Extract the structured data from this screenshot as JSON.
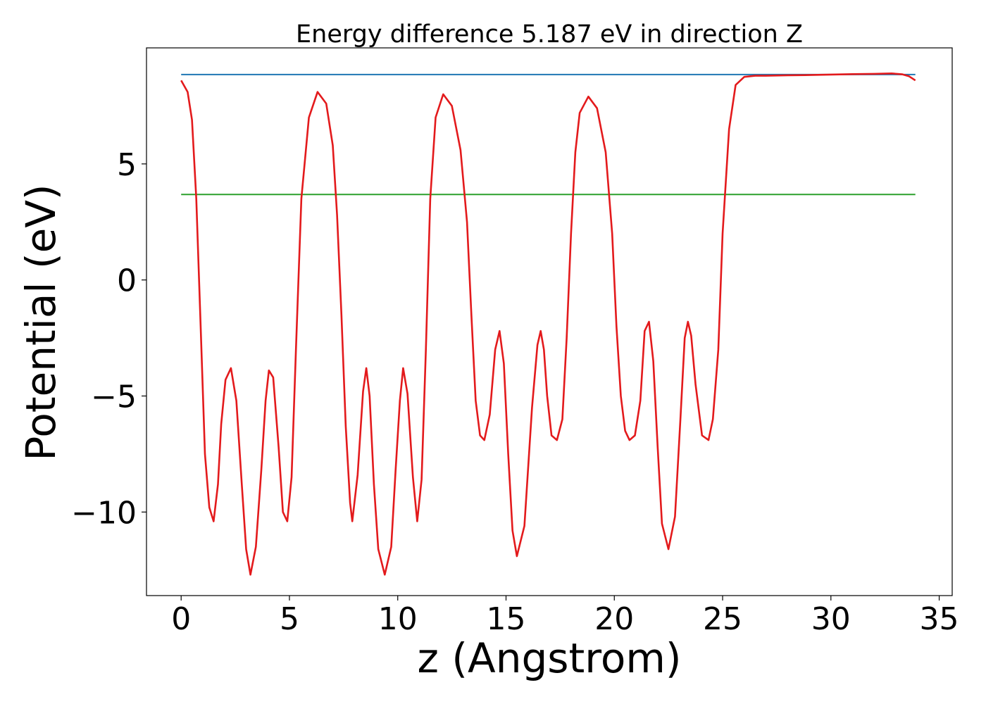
{
  "chart_data": {
    "type": "line",
    "title": "Energy difference 5.187 eV in direction Z",
    "xlabel": "z (Angstrom)",
    "ylabel": "Potential (eV)",
    "xlim": [
      -1.6,
      35.6
    ],
    "ylim": [
      -13.6,
      10.0
    ],
    "x_ticks": [
      0,
      5,
      10,
      15,
      20,
      25,
      30,
      35
    ],
    "x_tick_labels": [
      "0",
      "5",
      "10",
      "15",
      "20",
      "25",
      "30",
      "35"
    ],
    "y_ticks": [
      -10,
      -5,
      0,
      5
    ],
    "y_tick_labels": [
      "−10",
      "−5",
      "0",
      "5"
    ],
    "grid": false,
    "legend": "none",
    "series": [
      {
        "color": "#1f77b4",
        "x": [
          0,
          33.9
        ],
        "y": [
          8.85,
          8.85
        ]
      },
      {
        "color": "#2ca02c",
        "x": [
          0,
          33.9
        ],
        "y": [
          3.68,
          3.68
        ]
      },
      {
        "color": "#e31a1c",
        "x": [
          0,
          0.3,
          0.5,
          0.7,
          0.9,
          1.1,
          1.3,
          1.5,
          1.7,
          1.85,
          2.05,
          2.3,
          2.55,
          2.8,
          3.0,
          3.2,
          3.45,
          3.7,
          3.9,
          4.05,
          4.25,
          4.5,
          4.7,
          4.9,
          5.1,
          5.3,
          5.55,
          5.9,
          6.3,
          6.7,
          7.0,
          7.2,
          7.4,
          7.6,
          7.8,
          7.9,
          8.15,
          8.4,
          8.55,
          8.7,
          8.9,
          9.1,
          9.4,
          9.7,
          9.9,
          10.1,
          10.25,
          10.45,
          10.7,
          10.9,
          11.1,
          11.3,
          11.5,
          11.75,
          12.1,
          12.5,
          12.9,
          13.2,
          13.4,
          13.6,
          13.8,
          14.0,
          14.25,
          14.5,
          14.7,
          14.9,
          15.1,
          15.3,
          15.5,
          15.85,
          16.2,
          16.45,
          16.6,
          16.75,
          16.9,
          17.1,
          17.35,
          17.6,
          17.8,
          18.0,
          18.2,
          18.4,
          18.8,
          19.2,
          19.6,
          19.9,
          20.1,
          20.3,
          20.5,
          20.7,
          20.95,
          21.2,
          21.4,
          21.6,
          21.8,
          22.0,
          22.2,
          22.5,
          22.8,
          23.05,
          23.25,
          23.4,
          23.55,
          23.75,
          24.05,
          24.35,
          24.55,
          24.8,
          25.0,
          25.3,
          25.6,
          26.0,
          26.5,
          27.0,
          28.0,
          29.0,
          30.0,
          31.0,
          32.0,
          32.8,
          33.3,
          33.6,
          33.9
        ],
        "y": [
          8.6,
          8.1,
          6.9,
          3.5,
          -2.0,
          -7.5,
          -9.8,
          -10.4,
          -8.8,
          -6.2,
          -4.3,
          -3.8,
          -5.2,
          -8.8,
          -11.6,
          -12.7,
          -11.5,
          -8.2,
          -5.2,
          -3.9,
          -4.2,
          -7.2,
          -10.0,
          -10.4,
          -8.5,
          -3.0,
          3.5,
          7.0,
          8.1,
          7.6,
          5.8,
          2.8,
          -1.5,
          -6.3,
          -9.6,
          -10.4,
          -8.4,
          -4.8,
          -3.8,
          -5.0,
          -8.8,
          -11.6,
          -12.7,
          -11.5,
          -8.2,
          -5.2,
          -3.8,
          -4.9,
          -8.5,
          -10.4,
          -8.6,
          -3.0,
          3.5,
          7.0,
          8.0,
          7.5,
          5.6,
          2.5,
          -1.5,
          -5.2,
          -6.7,
          -6.9,
          -5.8,
          -3.0,
          -2.2,
          -3.6,
          -7.5,
          -10.8,
          -11.9,
          -10.6,
          -5.5,
          -2.8,
          -2.2,
          -3.0,
          -5.0,
          -6.7,
          -6.9,
          -6.0,
          -2.5,
          2.0,
          5.5,
          7.2,
          7.9,
          7.4,
          5.5,
          2.0,
          -2.0,
          -5.0,
          -6.5,
          -6.9,
          -6.7,
          -5.2,
          -2.2,
          -1.8,
          -3.5,
          -7.2,
          -10.5,
          -11.6,
          -10.2,
          -6.0,
          -2.5,
          -1.8,
          -2.4,
          -4.5,
          -6.7,
          -6.9,
          -6.0,
          -3.0,
          2.0,
          6.5,
          8.4,
          8.75,
          8.8,
          8.8,
          8.82,
          8.83,
          8.85,
          8.87,
          8.88,
          8.9,
          8.86,
          8.78,
          8.6
        ]
      }
    ]
  }
}
